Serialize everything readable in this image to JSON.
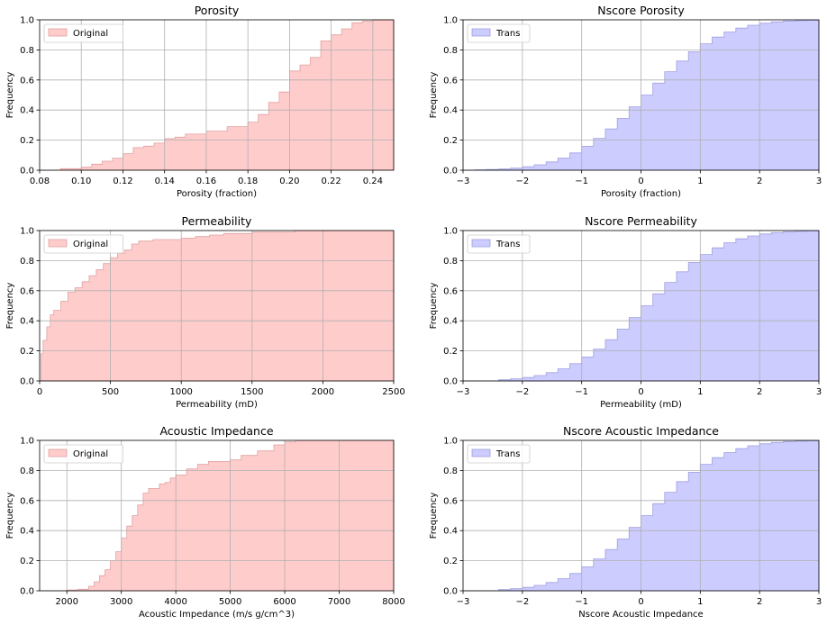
{
  "chart_data": [
    {
      "type": "area",
      "title": "Porosity",
      "xlabel": "Porosity (fraction)",
      "ylabel": "Frequency",
      "xlim": [
        0.08,
        0.25
      ],
      "ylim": [
        0,
        1
      ],
      "xticks": [
        0.08,
        0.1,
        0.12,
        0.14,
        0.16,
        0.18,
        0.2,
        0.22,
        0.24
      ],
      "xtick_labels": [
        "0.08",
        "0.10",
        "0.12",
        "0.14",
        "0.16",
        "0.18",
        "0.20",
        "0.22",
        "0.24"
      ],
      "yticks": [
        0,
        0.2,
        0.4,
        0.6,
        0.8,
        1.0
      ],
      "ytick_labels": [
        "0.0",
        "0.2",
        "0.4",
        "0.6",
        "0.8",
        "1.0"
      ],
      "grid": true,
      "legend": {
        "label": "Original",
        "position": "upper-left"
      },
      "fill_color": "#ffcccc",
      "edge_color": "#e0a0a0",
      "x": [
        0.08,
        0.09,
        0.1,
        0.105,
        0.11,
        0.115,
        0.12,
        0.125,
        0.13,
        0.135,
        0.14,
        0.145,
        0.15,
        0.16,
        0.17,
        0.175,
        0.18,
        0.185,
        0.19,
        0.195,
        0.2,
        0.205,
        0.21,
        0.215,
        0.22,
        0.225,
        0.23,
        0.235,
        0.24,
        0.25
      ],
      "y": [
        0.0,
        0.01,
        0.02,
        0.04,
        0.06,
        0.08,
        0.11,
        0.15,
        0.16,
        0.18,
        0.21,
        0.22,
        0.24,
        0.26,
        0.29,
        0.29,
        0.32,
        0.37,
        0.45,
        0.52,
        0.66,
        0.7,
        0.75,
        0.86,
        0.9,
        0.94,
        0.98,
        0.99,
        1.0,
        1.0
      ]
    },
    {
      "type": "area",
      "title": "Nscore Porosity",
      "xlabel": "Porosity (fraction)",
      "ylabel": "Frequency",
      "xlim": [
        -3,
        3
      ],
      "ylim": [
        0,
        1
      ],
      "xticks": [
        -3,
        -2,
        -1,
        0,
        1,
        2,
        3
      ],
      "xtick_labels": [
        "−3",
        "−2",
        "−1",
        "0",
        "1",
        "2",
        "3"
      ],
      "yticks": [
        0,
        0.2,
        0.4,
        0.6,
        0.8,
        1.0
      ],
      "ytick_labels": [
        "0.0",
        "0.2",
        "0.4",
        "0.6",
        "0.8",
        "1.0"
      ],
      "grid": true,
      "legend": {
        "label": "Trans",
        "position": "upper-left"
      },
      "fill_color": "#ccccff",
      "edge_color": "#a0a0e0",
      "x": [
        -3,
        -2.8,
        -2.6,
        -2.4,
        -2.2,
        -2.0,
        -1.8,
        -1.6,
        -1.4,
        -1.2,
        -1.0,
        -0.8,
        -0.6,
        -0.4,
        -0.2,
        0,
        0.2,
        0.4,
        0.6,
        0.8,
        1.0,
        1.2,
        1.4,
        1.6,
        1.8,
        2.0,
        2.2,
        2.4,
        2.6,
        2.8,
        3.0
      ],
      "y": [
        0.0,
        0.003,
        0.005,
        0.008,
        0.014,
        0.023,
        0.036,
        0.055,
        0.081,
        0.115,
        0.159,
        0.212,
        0.274,
        0.345,
        0.421,
        0.5,
        0.579,
        0.655,
        0.726,
        0.788,
        0.841,
        0.885,
        0.919,
        0.945,
        0.964,
        0.977,
        0.986,
        0.992,
        0.995,
        0.997,
        1.0
      ]
    },
    {
      "type": "area",
      "title": "Permeability",
      "xlabel": "Permeability (mD)",
      "ylabel": "Frequency",
      "xlim": [
        0,
        2500
      ],
      "ylim": [
        0,
        1
      ],
      "xticks": [
        0,
        500,
        1000,
        1500,
        2000,
        2500
      ],
      "xtick_labels": [
        "0",
        "500",
        "1000",
        "1500",
        "2000",
        "2500"
      ],
      "yticks": [
        0,
        0.2,
        0.4,
        0.6,
        0.8,
        1.0
      ],
      "ytick_labels": [
        "0.0",
        "0.2",
        "0.4",
        "0.6",
        "0.8",
        "1.0"
      ],
      "grid": true,
      "legend": {
        "label": "Original",
        "position": "upper-left"
      },
      "fill_color": "#ffcccc",
      "edge_color": "#e0a0a0",
      "x": [
        0,
        10,
        25,
        50,
        75,
        100,
        150,
        200,
        250,
        300,
        350,
        400,
        450,
        500,
        550,
        600,
        650,
        700,
        800,
        900,
        1000,
        1100,
        1200,
        1300,
        1500,
        1800,
        2000,
        2500
      ],
      "y": [
        0.0,
        0.18,
        0.27,
        0.36,
        0.44,
        0.47,
        0.53,
        0.59,
        0.62,
        0.66,
        0.7,
        0.74,
        0.78,
        0.82,
        0.85,
        0.87,
        0.91,
        0.93,
        0.94,
        0.94,
        0.95,
        0.96,
        0.97,
        0.98,
        0.99,
        1.0,
        1.0,
        1.0
      ]
    },
    {
      "type": "area",
      "title": "Nscore Permeability",
      "xlabel": "Permeability (mD)",
      "ylabel": "Frequency",
      "xlim": [
        -3,
        3
      ],
      "ylim": [
        0,
        1
      ],
      "xticks": [
        -3,
        -2,
        -1,
        0,
        1,
        2,
        3
      ],
      "xtick_labels": [
        "−3",
        "−2",
        "−1",
        "0",
        "1",
        "2",
        "3"
      ],
      "yticks": [
        0,
        0.2,
        0.4,
        0.6,
        0.8,
        1.0
      ],
      "ytick_labels": [
        "0.0",
        "0.2",
        "0.4",
        "0.6",
        "0.8",
        "1.0"
      ],
      "grid": true,
      "legend": {
        "label": "Trans",
        "position": "upper-left"
      },
      "fill_color": "#ccccff",
      "edge_color": "#a0a0e0",
      "x": [
        -3,
        -2.6,
        -2.4,
        -2.2,
        -2.0,
        -1.8,
        -1.6,
        -1.4,
        -1.2,
        -1.0,
        -0.8,
        -0.6,
        -0.4,
        -0.2,
        0,
        0.2,
        0.4,
        0.6,
        0.8,
        1.0,
        1.2,
        1.4,
        1.6,
        1.8,
        2.0,
        2.2,
        2.4,
        2.6,
        2.8,
        3.0
      ],
      "y": [
        0.0,
        0.0,
        0.008,
        0.014,
        0.023,
        0.036,
        0.055,
        0.081,
        0.115,
        0.159,
        0.212,
        0.274,
        0.345,
        0.421,
        0.5,
        0.579,
        0.655,
        0.726,
        0.788,
        0.841,
        0.885,
        0.919,
        0.945,
        0.964,
        0.977,
        0.986,
        0.992,
        0.995,
        0.997,
        1.0
      ]
    },
    {
      "type": "area",
      "title": "Acoustic Impedance",
      "xlabel": "Acoustic Impedance (m/s g/cm^3)",
      "ylabel": "Frequency",
      "xlim": [
        1500,
        8000
      ],
      "ylim": [
        0,
        1
      ],
      "xticks": [
        2000,
        3000,
        4000,
        5000,
        6000,
        7000,
        8000
      ],
      "xtick_labels": [
        "2000",
        "3000",
        "4000",
        "5000",
        "6000",
        "7000",
        "8000"
      ],
      "yticks": [
        0,
        0.2,
        0.4,
        0.6,
        0.8,
        1.0
      ],
      "ytick_labels": [
        "0.0",
        "0.2",
        "0.4",
        "0.6",
        "0.8",
        "1.0"
      ],
      "grid": true,
      "legend": {
        "label": "Original",
        "position": "upper-left"
      },
      "fill_color": "#ffcccc",
      "edge_color": "#e0a0a0",
      "x": [
        1500,
        1800,
        2000,
        2200,
        2400,
        2500,
        2600,
        2700,
        2800,
        2900,
        3000,
        3100,
        3200,
        3300,
        3400,
        3500,
        3700,
        3800,
        3900,
        4000,
        4200,
        4400,
        4600,
        5000,
        5200,
        5500,
        5800,
        6000,
        6200,
        6500,
        8000
      ],
      "y": [
        0.0,
        0.0,
        0.005,
        0.01,
        0.03,
        0.06,
        0.1,
        0.14,
        0.2,
        0.26,
        0.35,
        0.43,
        0.5,
        0.57,
        0.65,
        0.68,
        0.71,
        0.72,
        0.75,
        0.77,
        0.81,
        0.84,
        0.86,
        0.87,
        0.9,
        0.93,
        0.97,
        0.99,
        1.0,
        1.0,
        1.0
      ]
    },
    {
      "type": "area",
      "title": "Nscore Acoustic Impedance",
      "xlabel": "Nscore Acoustic Impedance",
      "ylabel": "Frequency",
      "xlim": [
        -3,
        3
      ],
      "ylim": [
        0,
        1
      ],
      "xticks": [
        -3,
        -2,
        -1,
        0,
        1,
        2,
        3
      ],
      "xtick_labels": [
        "−3",
        "−2",
        "−1",
        "0",
        "1",
        "2",
        "3"
      ],
      "yticks": [
        0,
        0.2,
        0.4,
        0.6,
        0.8,
        1.0
      ],
      "ytick_labels": [
        "0.0",
        "0.2",
        "0.4",
        "0.6",
        "0.8",
        "1.0"
      ],
      "grid": true,
      "legend": {
        "label": "Trans",
        "position": "upper-left"
      },
      "fill_color": "#ccccff",
      "edge_color": "#a0a0e0",
      "x": [
        -3,
        -2.6,
        -2.4,
        -2.2,
        -2.0,
        -1.8,
        -1.6,
        -1.4,
        -1.2,
        -1.0,
        -0.8,
        -0.6,
        -0.4,
        -0.2,
        0,
        0.2,
        0.4,
        0.6,
        0.8,
        1.0,
        1.2,
        1.4,
        1.6,
        1.8,
        2.0,
        2.2,
        2.4,
        2.6,
        2.8,
        3.0
      ],
      "y": [
        0.0,
        0.0,
        0.008,
        0.014,
        0.023,
        0.036,
        0.055,
        0.081,
        0.115,
        0.159,
        0.212,
        0.274,
        0.345,
        0.421,
        0.5,
        0.579,
        0.655,
        0.726,
        0.788,
        0.841,
        0.885,
        0.919,
        0.945,
        0.964,
        0.977,
        0.986,
        0.992,
        0.995,
        0.997,
        1.0
      ]
    }
  ]
}
